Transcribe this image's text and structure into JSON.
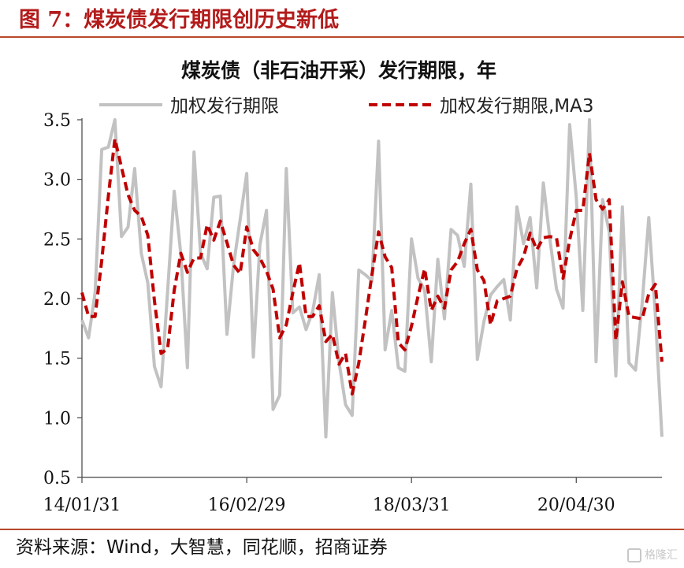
{
  "figure": {
    "title": "图  7：煤炭债发行期限创历史新低",
    "source": "资料来源：Wind，大智慧，同花顺，招商证券",
    "watermark": "格隆汇"
  },
  "colors": {
    "accent": "#b31b1b",
    "rule": "#b8482a",
    "series_raw": "#c2c2c2",
    "series_ma": "#c00000"
  },
  "chart_data": {
    "type": "line",
    "title": "煤炭债（非石油开采）发行期限，年",
    "ylim": [
      0.5,
      3.5
    ],
    "yticks": [
      "0.5",
      "1.0",
      "1.5",
      "2.0",
      "2.5",
      "3.0",
      "3.5"
    ],
    "xticks": [
      "14/01/31",
      "16/02/29",
      "18/03/31",
      "20/04/30"
    ],
    "grid": false,
    "legend_position": "top",
    "series": [
      {
        "name": "加权发行期限",
        "style": "solid",
        "values": [
          1.82,
          1.67,
          2.05,
          3.25,
          3.27,
          3.5,
          2.52,
          2.6,
          3.09,
          2.38,
          2.13,
          1.43,
          1.26,
          2.06,
          2.9,
          2.37,
          1.42,
          3.23,
          2.38,
          2.25,
          2.85,
          2.86,
          1.7,
          2.28,
          2.66,
          3.05,
          1.51,
          2.45,
          2.74,
          1.07,
          1.19,
          3.09,
          1.88,
          1.93,
          1.74,
          1.89,
          2.2,
          0.84,
          2.05,
          1.47,
          1.11,
          1.02,
          2.24,
          2.2,
          2.15,
          3.32,
          1.57,
          1.9,
          1.42,
          1.39,
          2.5,
          2.17,
          2.07,
          1.47,
          2.33,
          1.83,
          2.58,
          2.53,
          2.27,
          2.96,
          1.49,
          1.81,
          2.03,
          2.1,
          2.16,
          1.82,
          2.77,
          2.46,
          2.68,
          2.09,
          2.97,
          2.5,
          2.08,
          1.92,
          3.46,
          2.85,
          1.9,
          3.5,
          1.47,
          2.83,
          2.56,
          1.35,
          2.77,
          1.46,
          1.4,
          1.96,
          2.68,
          1.87,
          0.84
        ]
      },
      {
        "name": "加权发行期限,MA3",
        "style": "dashed",
        "values": [
          2.05,
          1.85,
          1.85,
          2.32,
          2.86,
          3.34,
          3.1,
          2.87,
          2.74,
          2.69,
          2.53,
          1.98,
          1.54,
          1.58,
          2.07,
          2.38,
          2.22,
          2.34,
          2.34,
          2.62,
          2.49,
          2.65,
          2.47,
          2.28,
          2.21,
          2.6,
          2.41,
          2.34,
          2.23,
          2.08,
          1.67,
          1.78,
          2.05,
          2.3,
          1.85,
          1.85,
          1.94,
          1.64,
          1.7,
          1.45,
          1.54,
          1.2,
          1.46,
          1.82,
          2.2,
          2.56,
          2.35,
          2.26,
          1.63,
          1.57,
          1.77,
          2.02,
          2.25,
          1.9,
          2.02,
          1.92,
          2.24,
          2.31,
          2.46,
          2.58,
          2.24,
          2.15,
          1.78,
          1.98,
          2.0,
          2.02,
          2.25,
          2.35,
          2.55,
          2.41,
          2.51,
          2.52,
          2.51,
          2.17,
          2.49,
          2.74,
          2.74,
          3.22,
          2.83,
          2.75,
          2.83,
          1.65,
          2.14,
          1.85,
          1.84,
          1.83,
          2.04,
          2.12,
          1.47
        ]
      }
    ]
  }
}
